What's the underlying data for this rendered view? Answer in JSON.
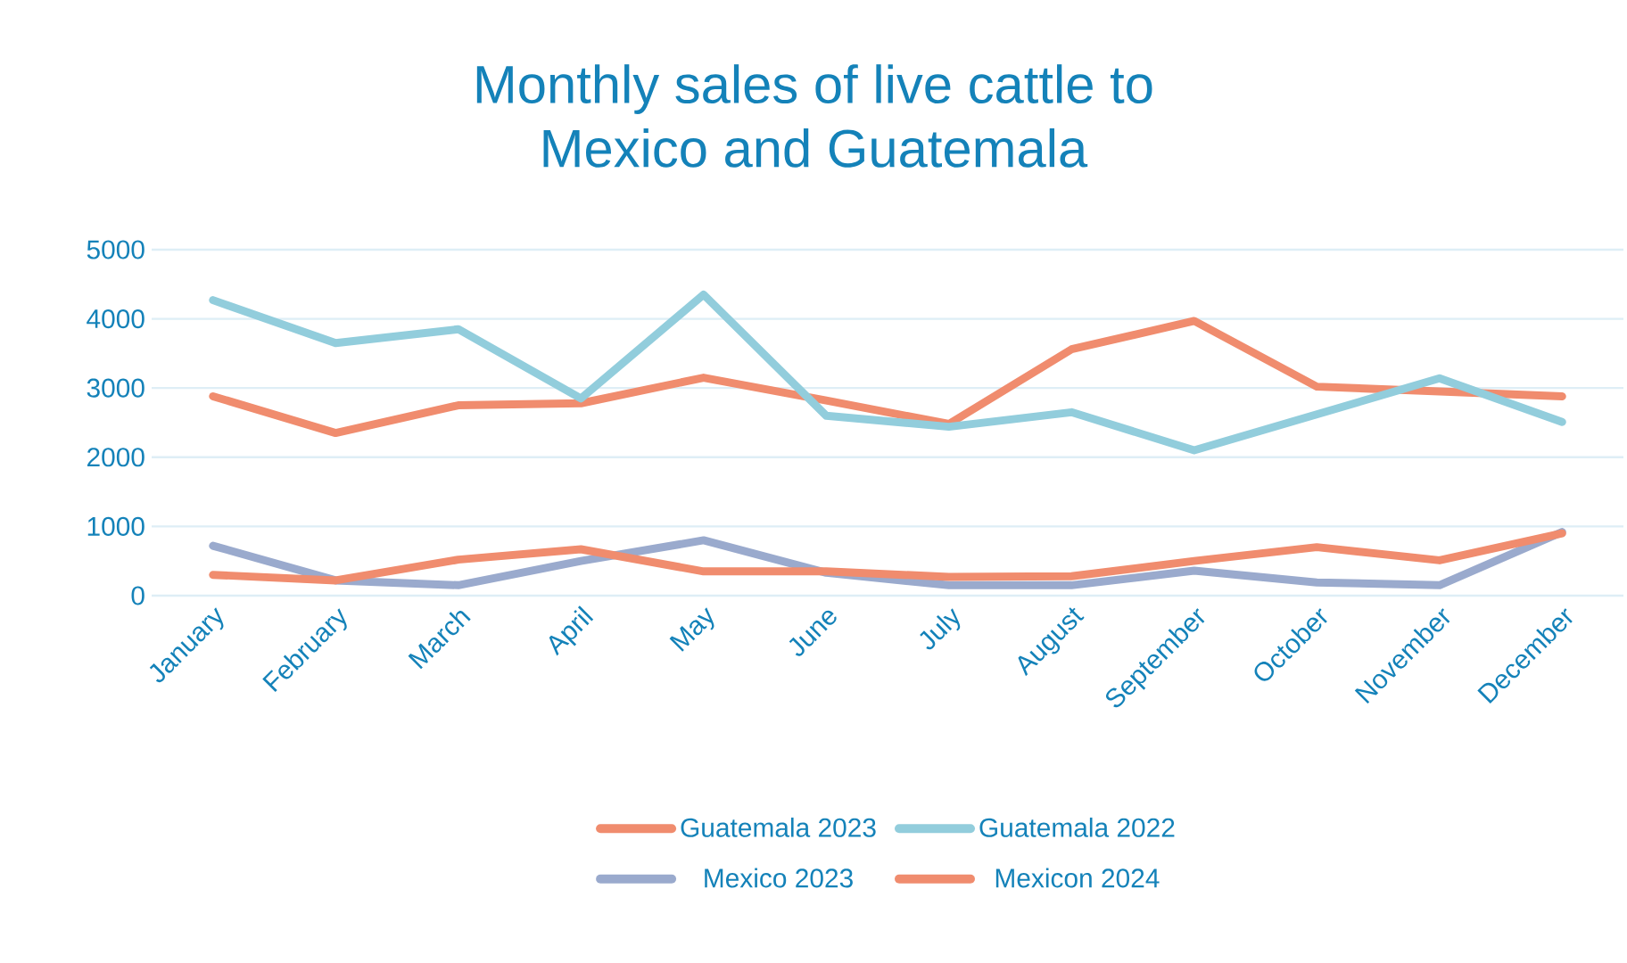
{
  "chart_data": {
    "type": "line",
    "title": "Monthly sales of live cattle to\nMexico and Guatemala",
    "categories": [
      "January",
      "February",
      "March",
      "April",
      "May",
      "June",
      "July",
      "August",
      "September",
      "October",
      "November",
      "December"
    ],
    "series": [
      {
        "name": "Guatemala 2023",
        "color": "#f08c6e",
        "values": [
          2880,
          2350,
          2750,
          2780,
          3150,
          2820,
          2480,
          3560,
          3970,
          3020,
          2950,
          2880
        ]
      },
      {
        "name": "Guatemala 2022",
        "color": "#92cddc",
        "values": [
          4270,
          3650,
          3850,
          2850,
          4350,
          2600,
          2440,
          2650,
          2100,
          2620,
          3140,
          2510
        ]
      },
      {
        "name": "Mexico 2023",
        "color": "#9aaacd",
        "values": [
          720,
          220,
          150,
          500,
          800,
          330,
          150,
          150,
          360,
          190,
          150,
          920
        ]
      },
      {
        "name": "Mexicon 2024",
        "color": "#f08c6e",
        "values": [
          300,
          220,
          520,
          670,
          350,
          350,
          270,
          280,
          500,
          700,
          510,
          900
        ]
      }
    ],
    "ylim": [
      0,
      5000
    ],
    "yticks": [
      0,
      1000,
      2000,
      3000,
      4000,
      5000
    ],
    "grid": "y",
    "legend": "bottom",
    "marker": "none",
    "line_style": "solid"
  }
}
